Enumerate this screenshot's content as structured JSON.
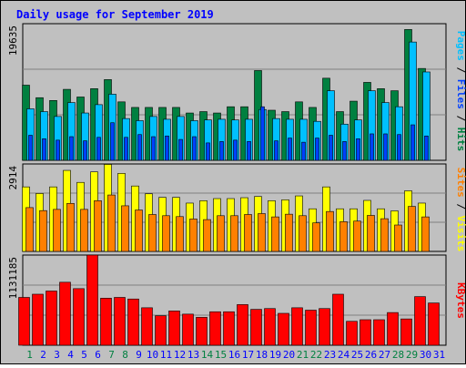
{
  "title": "Daily usage for September 2019",
  "colors": {
    "background": "#c0c0c0",
    "plot_bg": "#c0c0c0",
    "title": "#0000ff",
    "grid": "#808080",
    "hits": "#008040",
    "files": "#00c0ff",
    "pages": "#0040ff",
    "visits": "#ffff00",
    "sites": "#ff8000",
    "kbytes": "#ff0000",
    "weekend_label": "#008040",
    "weekday_label": "#0000ff"
  },
  "chart_data": [
    {
      "type": "bar",
      "panel": "hits-files-pages",
      "categories": [
        "1",
        "2",
        "3",
        "4",
        "5",
        "6",
        "7",
        "8",
        "9",
        "10",
        "11",
        "12",
        "13",
        "14",
        "15",
        "16",
        "17",
        "18",
        "19",
        "20",
        "21",
        "22",
        "23",
        "24",
        "25",
        "26",
        "27",
        "28",
        "29",
        "30",
        "31"
      ],
      "y_tick_label": "19635",
      "ylim": [
        0,
        19635
      ],
      "axis_label": [
        {
          "text": "Pages",
          "color": "#00c0ff"
        },
        {
          "text": " / ",
          "color": "#000000"
        },
        {
          "text": "Files",
          "color": "#0040ff"
        },
        {
          "text": " / ",
          "color": "#000000"
        },
        {
          "text": "Hits",
          "color": "#008040"
        }
      ],
      "series": [
        {
          "name": "Hits",
          "color": "#008040",
          "values": [
            10800,
            9000,
            8600,
            10200,
            9100,
            10300,
            11600,
            8400,
            7600,
            7600,
            7600,
            7600,
            6800,
            7000,
            6800,
            7700,
            7700,
            12900,
            7200,
            7000,
            8400,
            7600,
            11800,
            7000,
            8500,
            11200,
            10300,
            10000,
            18800,
            13200,
            null
          ]
        },
        {
          "name": "Files",
          "color": "#00c0ff",
          "values": [
            7400,
            7000,
            6300,
            8300,
            6800,
            8000,
            9500,
            6000,
            5700,
            6300,
            5900,
            6300,
            5700,
            5800,
            5900,
            5800,
            5900,
            7300,
            6000,
            5900,
            5900,
            5600,
            10000,
            5200,
            5800,
            10000,
            8300,
            7700,
            17000,
            12700,
            null
          ]
        },
        {
          "name": "Pages",
          "color": "#0040ff",
          "values": [
            3600,
            3100,
            2900,
            3400,
            2800,
            3300,
            5400,
            3300,
            3700,
            3400,
            3500,
            3000,
            3400,
            2500,
            2700,
            2900,
            2700,
            7700,
            2800,
            3200,
            2600,
            3200,
            3600,
            2700,
            3100,
            3800,
            3800,
            3700,
            5100,
            3500,
            null
          ]
        }
      ]
    },
    {
      "type": "bar",
      "panel": "visits-sites",
      "categories": [
        "1",
        "2",
        "3",
        "4",
        "5",
        "6",
        "7",
        "8",
        "9",
        "10",
        "11",
        "12",
        "13",
        "14",
        "15",
        "16",
        "17",
        "18",
        "19",
        "20",
        "21",
        "22",
        "23",
        "24",
        "25",
        "26",
        "27",
        "28",
        "29",
        "30",
        "31"
      ],
      "y_tick_label": "2914",
      "ylim": [
        0,
        2914
      ],
      "axis_label": [
        {
          "text": "Sites",
          "color": "#ff8000"
        },
        {
          "text": " / ",
          "color": "#000000"
        },
        {
          "text": "Visits",
          "color": "#ffff00"
        }
      ],
      "series": [
        {
          "name": "Visits",
          "color": "#ffff00",
          "values": [
            2150,
            1930,
            2150,
            2700,
            2300,
            2650,
            2900,
            2600,
            2180,
            1920,
            1800,
            1800,
            1610,
            1690,
            1760,
            1760,
            1790,
            1830,
            1690,
            1720,
            1850,
            1420,
            2150,
            1420,
            1420,
            1700,
            1420,
            1350,
            2020,
            1610,
            null
          ]
        },
        {
          "name": "Sites",
          "color": "#ff8000",
          "values": [
            1460,
            1360,
            1400,
            1600,
            1400,
            1690,
            1880,
            1520,
            1380,
            1230,
            1190,
            1160,
            1080,
            1060,
            1190,
            1190,
            1230,
            1260,
            1150,
            1240,
            1190,
            950,
            1330,
            990,
            1010,
            1200,
            1090,
            880,
            1500,
            1150,
            null
          ]
        }
      ]
    },
    {
      "type": "bar",
      "panel": "kbytes",
      "categories": [
        "1",
        "2",
        "3",
        "4",
        "5",
        "6",
        "7",
        "8",
        "9",
        "10",
        "11",
        "12",
        "13",
        "14",
        "15",
        "16",
        "17",
        "18",
        "19",
        "20",
        "21",
        "22",
        "23",
        "24",
        "25",
        "26",
        "27",
        "28",
        "29",
        "30",
        "31"
      ],
      "y_tick_label": "1131185",
      "ylim": [
        0,
        1131185
      ],
      "axis_label": [
        {
          "text": "KBytes",
          "color": "#ff0000"
        }
      ],
      "series": [
        {
          "name": "KBytes",
          "color": "#ff0000",
          "values": [
            600000,
            640000,
            680000,
            790000,
            710000,
            1131185,
            590000,
            600000,
            580000,
            470000,
            370000,
            430000,
            390000,
            350000,
            420000,
            420000,
            510000,
            450000,
            460000,
            400000,
            470000,
            440000,
            460000,
            640000,
            300000,
            320000,
            320000,
            410000,
            330000,
            610000,
            530000
          ]
        }
      ]
    }
  ],
  "x_labels": [
    {
      "text": "1",
      "weekend": true
    },
    {
      "text": "2",
      "weekend": false
    },
    {
      "text": "3",
      "weekend": false
    },
    {
      "text": "4",
      "weekend": false
    },
    {
      "text": "5",
      "weekend": false
    },
    {
      "text": "6",
      "weekend": false
    },
    {
      "text": "7",
      "weekend": true
    },
    {
      "text": "8",
      "weekend": true
    },
    {
      "text": "9",
      "weekend": false
    },
    {
      "text": "10",
      "weekend": false
    },
    {
      "text": "11",
      "weekend": false
    },
    {
      "text": "12",
      "weekend": false
    },
    {
      "text": "13",
      "weekend": false
    },
    {
      "text": "14",
      "weekend": true
    },
    {
      "text": "15",
      "weekend": true
    },
    {
      "text": "16",
      "weekend": false
    },
    {
      "text": "17",
      "weekend": false
    },
    {
      "text": "18",
      "weekend": false
    },
    {
      "text": "19",
      "weekend": false
    },
    {
      "text": "20",
      "weekend": false
    },
    {
      "text": "21",
      "weekend": true
    },
    {
      "text": "22",
      "weekend": true
    },
    {
      "text": "23",
      "weekend": false
    },
    {
      "text": "24",
      "weekend": false
    },
    {
      "text": "25",
      "weekend": false
    },
    {
      "text": "26",
      "weekend": false
    },
    {
      "text": "27",
      "weekend": false
    },
    {
      "text": "28",
      "weekend": true
    },
    {
      "text": "29",
      "weekend": true
    },
    {
      "text": "30",
      "weekend": false
    },
    {
      "text": "31",
      "weekend": false
    }
  ]
}
